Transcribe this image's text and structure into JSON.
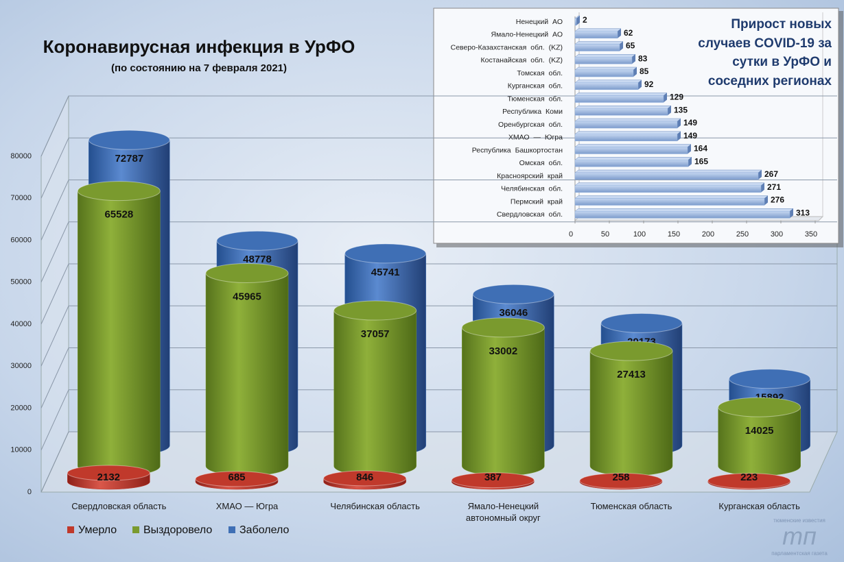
{
  "chart_data": [
    {
      "type": "cylinder_bar",
      "title": "Коронавирусная инфекция в УрФО",
      "subtitle": "(по состоянию на 7 февраля 2021)",
      "categories": [
        "Свердловская область",
        "ХМАО — Югра",
        "Челябинская область",
        "Ямало-Ненецкий автономный округ",
        "Тюменская область",
        "Курганская область"
      ],
      "series": [
        {
          "name": "Умерло",
          "color": "#c0392b",
          "values": [
            2132,
            685,
            846,
            387,
            258,
            223
          ]
        },
        {
          "name": "Выздоровело",
          "color": "#7a9a2e",
          "values": [
            65528,
            45965,
            37057,
            33002,
            27413,
            14025
          ]
        },
        {
          "name": "Заболело",
          "color": "#3f6fb5",
          "values": [
            72787,
            48778,
            45741,
            36046,
            29173,
            15892
          ]
        }
      ],
      "ylim": [
        0,
        80000
      ],
      "yticks": [
        0,
        10000,
        20000,
        30000,
        40000,
        50000,
        60000,
        70000,
        80000
      ],
      "grid": true,
      "legend": "bottom-left"
    },
    {
      "type": "hbar",
      "title": "Прирост новых случаев COVID-19 за сутки в УрФО и соседних регионах",
      "categories": [
        "Ненецкий АО",
        "Ямало-Ненецкий АО",
        "Северо-Казахстанская обл. (KZ)",
        "Костанайская обл. (KZ)",
        "Томская обл.",
        "Курганская обл.",
        "Тюменская обл.",
        "Республика Коми",
        "Оренбургская обл.",
        "ХМАО — Югра",
        "Республика Башкортостан",
        "Омская обл.",
        "Красноярский край",
        "Челябинская обл.",
        "Пермский край",
        "Свердловская обл."
      ],
      "values": [
        2,
        62,
        65,
        83,
        85,
        92,
        129,
        135,
        149,
        149,
        164,
        165,
        267,
        271,
        276,
        313
      ],
      "color": "#95b3df",
      "xlim": [
        0,
        350
      ],
      "xticks": [
        0,
        50,
        100,
        150,
        200,
        250,
        300,
        350
      ]
    }
  ],
  "logo": {
    "top": "тюменские известия",
    "mark": "тп",
    "bottom": "парламентская газета"
  }
}
